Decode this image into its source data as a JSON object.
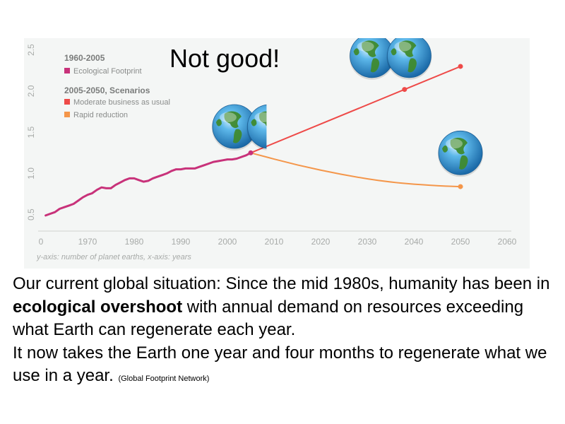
{
  "slide": {
    "title": "Not good!",
    "paragraph1_before": "Our current global situation: Since the mid 1980s, humanity has been in ",
    "paragraph1_emph": "ecological overshoot",
    "paragraph1_after": " with annual demand on resources exceeding what Earth can regenerate each year.",
    "paragraph2": "It now takes the Earth one year and four months to regenerate what we use in a year.",
    "source": "(Global Footprint Network)"
  },
  "chart_data": {
    "type": "line",
    "legend": {
      "group1_title": "1960-2005",
      "group2_title": "2005-2050, Scenarios",
      "placement": "top-left"
    },
    "axis_note": "y-axis: number of planet earths, x-axis: years",
    "xlim": [
      1960,
      2060
    ],
    "ylim": [
      0.3,
      2.6
    ],
    "x_ticks": [
      "0",
      "1970",
      "1980",
      "1990",
      "2000",
      "2010",
      "2020",
      "2030",
      "2040",
      "2050",
      "2060"
    ],
    "y_ticks": [
      "0.5",
      "1.0",
      "1.5",
      "2.0",
      "2.5"
    ],
    "series": [
      {
        "name": "Ecological Footprint",
        "color": "#c8327a",
        "x": [
          1961,
          1962,
          1963,
          1964,
          1965,
          1966,
          1967,
          1968,
          1969,
          1970,
          1971,
          1972,
          1973,
          1974,
          1975,
          1976,
          1977,
          1978,
          1979,
          1980,
          1981,
          1982,
          1983,
          1984,
          1985,
          1986,
          1987,
          1988,
          1989,
          1990,
          1991,
          1992,
          1993,
          1994,
          1995,
          1996,
          1997,
          1998,
          1999,
          2000,
          2001,
          2002,
          2003,
          2004,
          2005
        ],
        "values": [
          0.49,
          0.51,
          0.53,
          0.57,
          0.59,
          0.61,
          0.63,
          0.67,
          0.71,
          0.74,
          0.76,
          0.8,
          0.83,
          0.82,
          0.82,
          0.86,
          0.89,
          0.92,
          0.94,
          0.94,
          0.92,
          0.9,
          0.91,
          0.94,
          0.96,
          0.98,
          1.0,
          1.03,
          1.05,
          1.05,
          1.06,
          1.06,
          1.06,
          1.08,
          1.1,
          1.12,
          1.14,
          1.15,
          1.16,
          1.17,
          1.17,
          1.18,
          1.2,
          1.22,
          1.25
        ]
      },
      {
        "name": "Moderate business as usual",
        "color": "#ee4a48",
        "x": [
          2005,
          2038,
          2050
        ],
        "values": [
          1.25,
          2.02,
          2.3
        ]
      },
      {
        "name": "Rapid reduction",
        "color": "#f4964a",
        "x": [
          2005,
          2015,
          2025,
          2035,
          2045,
          2050
        ],
        "values": [
          1.25,
          1.1,
          0.98,
          0.89,
          0.85,
          0.84
        ]
      }
    ],
    "endpoint_markers": [
      {
        "x": 2005,
        "value": 1.25,
        "color": "#c8327a"
      },
      {
        "x": 2038,
        "value": 2.02,
        "color": "#ee4a48"
      },
      {
        "x": 2050,
        "value": 2.3,
        "color": "#ee4a48"
      },
      {
        "x": 2050,
        "value": 0.84,
        "color": "#f4964a"
      }
    ],
    "globes": [
      {
        "x": 2001.5,
        "value": 1.57,
        "side": "full"
      },
      {
        "x": 2009,
        "value": 1.57,
        "side": "half"
      },
      {
        "x": 2031,
        "value": 2.43,
        "side": "full"
      },
      {
        "x": 2039,
        "value": 2.43,
        "side": "full"
      },
      {
        "x": 2050,
        "value": 1.25,
        "side": "full"
      }
    ],
    "colors": {
      "background": "#f4f6f5",
      "axis_text": "#a7aaa8",
      "legend_title": "#7a7c7b",
      "globe_ocean": "#3b9fd6",
      "globe_land": "#3f8a2e"
    }
  }
}
